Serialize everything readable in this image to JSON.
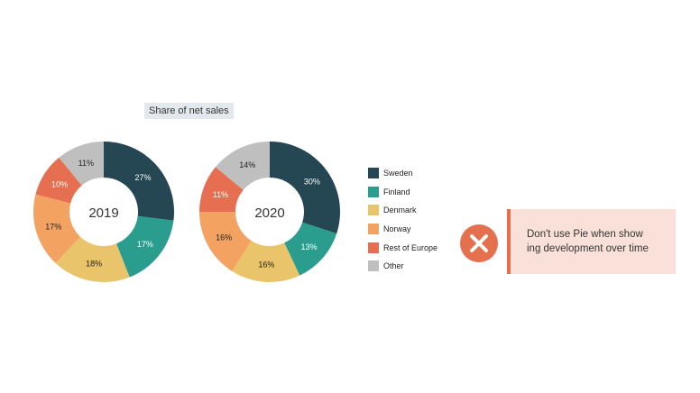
{
  "chart_title": "Share of net sales",
  "colors": {
    "Sweden": "#254653",
    "Finland": "#2a9d8f",
    "Denmark": "#e9c46a",
    "Norway": "#f4a261",
    "Rest of Europe": "#e76f51",
    "Other": "#bfbfbf",
    "accent": "#e4704e",
    "note_bg": "#f9e0d8"
  },
  "legend": [
    {
      "label": "Sweden",
      "color": "#254653"
    },
    {
      "label": "Finland",
      "color": "#2a9d8f"
    },
    {
      "label": "Denmark",
      "color": "#e9c46a"
    },
    {
      "label": "Norway",
      "color": "#f4a261"
    },
    {
      "label": "Rest of Europe",
      "color": "#e76f51"
    },
    {
      "label": "Other",
      "color": "#bfbfbf"
    }
  ],
  "note": {
    "icon": "close-x-icon",
    "text": "Don't use Pie when show\ning development over time"
  },
  "chart_data": [
    {
      "type": "pie",
      "center_label": "2019",
      "categories": [
        "Sweden",
        "Finland",
        "Denmark",
        "Norway",
        "Rest of Europe",
        "Other"
      ],
      "values": [
        27,
        17,
        18,
        17,
        10,
        11
      ],
      "labels": [
        "27%",
        "17%",
        "18%",
        "17%",
        "10%",
        "11%"
      ]
    },
    {
      "type": "pie",
      "center_label": "2020",
      "categories": [
        "Sweden",
        "Finland",
        "Denmark",
        "Norway",
        "Rest of Europe",
        "Other"
      ],
      "values": [
        30,
        13,
        16,
        16,
        11,
        14
      ],
      "labels": [
        "30%",
        "13%",
        "16%",
        "16%",
        "11%",
        "14%"
      ]
    }
  ]
}
